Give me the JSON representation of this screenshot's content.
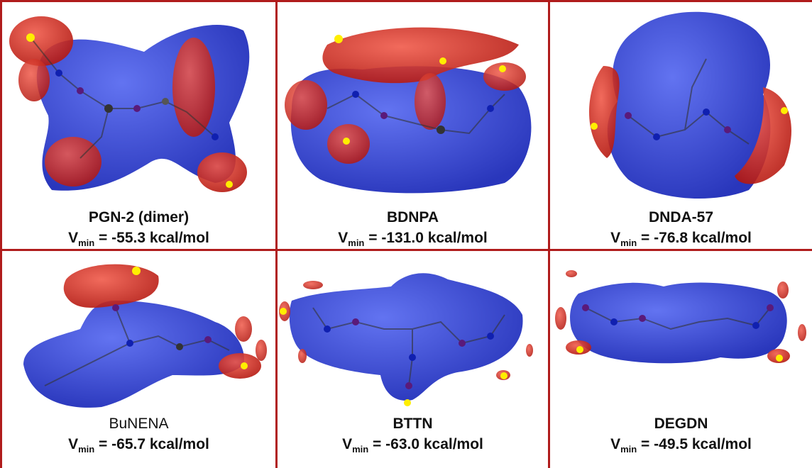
{
  "panels": [
    {
      "name": "PGN-2 (dimer)",
      "vmin_symbol": "V",
      "vmin_sub": "min",
      "vmin_value": " = -55.3 kcal/mol"
    },
    {
      "name": "BDNPA",
      "vmin_symbol": "V",
      "vmin_sub": "min",
      "vmin_value": " = -131.0 kcal/mol"
    },
    {
      "name": "DNDA-57",
      "vmin_symbol": "V",
      "vmin_sub": "min",
      "vmin_value": " = -76.8 kcal/mol"
    },
    {
      "name": "BuNENA",
      "vmin_symbol": "V",
      "vmin_sub": "min",
      "vmin_value": " = -65.7 kcal/mol"
    },
    {
      "name": "BTTN",
      "vmin_symbol": "V",
      "vmin_sub": "min",
      "vmin_value": " = -63.0 kcal/mol"
    },
    {
      "name": "DEGDN",
      "vmin_symbol": "V",
      "vmin_sub": "min",
      "vmin_value": " = -49.5 kcal/mol"
    }
  ],
  "colors": {
    "grid": "#b01c1c",
    "positive_surface": "#2f3fd0",
    "negative_surface": "#d8281c",
    "vmin_marker": "#ffee00"
  }
}
